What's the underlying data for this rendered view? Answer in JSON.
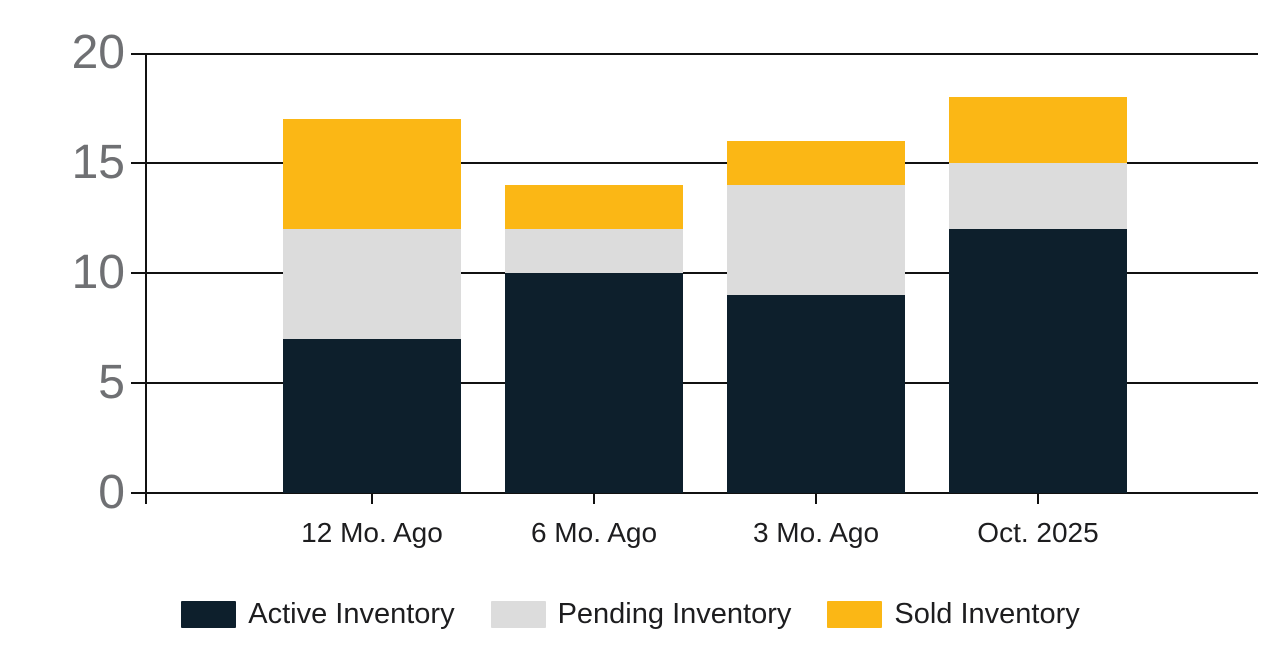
{
  "chart_data": {
    "type": "bar",
    "stacked": true,
    "title": "",
    "xlabel": "",
    "ylabel": "",
    "categories": [
      "12 Mo. Ago",
      "6 Mo. Ago",
      "3 Mo. Ago",
      "Oct. 2025"
    ],
    "series": [
      {
        "name": "Active Inventory",
        "color": "#0d1f2c",
        "values": [
          7,
          10,
          9,
          12
        ]
      },
      {
        "name": "Pending Inventory",
        "color": "#dcdcdc",
        "values": [
          5,
          2,
          5,
          3
        ]
      },
      {
        "name": "Sold Inventory",
        "color": "#fbb715",
        "values": [
          5,
          2,
          2,
          3
        ]
      }
    ],
    "stack_totals": [
      17,
      14,
      16,
      18
    ],
    "ylim": [
      0,
      20
    ],
    "yticks": [
      "0",
      "5",
      "10",
      "15",
      "20"
    ],
    "grid": true,
    "legend_position": "bottom"
  },
  "colors": {
    "background": "#ffffff",
    "gridline": "#111111",
    "axis_line": "#111111",
    "y_tick_label": "#6f7073",
    "x_tick_label": "#1d1d1f",
    "legend_label": "#1d1d1f"
  }
}
